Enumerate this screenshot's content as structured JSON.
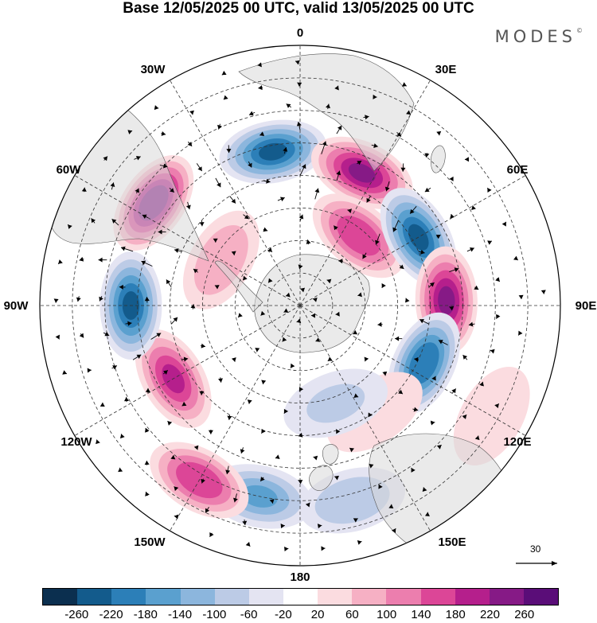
{
  "title": "Base 12/05/2025 00 UTC, valid 13/05/2025 00 UTC",
  "brand": "MODES",
  "brand_mark": "©",
  "lon_labels": [
    "0",
    "30E",
    "60E",
    "90E",
    "120E",
    "150E",
    "180",
    "150W",
    "120W",
    "90W",
    "60W",
    "30W"
  ],
  "colorbar": {
    "ticks": [
      "-260",
      "-220",
      "-180",
      "-140",
      "-100",
      "-60",
      "-20",
      "20",
      "60",
      "100",
      "140",
      "180",
      "220",
      "260"
    ],
    "colors": [
      "#0b2f4f",
      "#135b8c",
      "#2c7fb8",
      "#5aa0cf",
      "#8cb6dd",
      "#bccbe6",
      "#e4e4f2",
      "#ffffff",
      "#fbdce0",
      "#f6b0c4",
      "#ec7eae",
      "#dc4697",
      "#b51f8c",
      "#861a86",
      "#5a0d78"
    ]
  },
  "vector_scale": {
    "value": "30",
    "icon": "arrow-right-icon"
  },
  "land_color": "#e3e3e3",
  "anomaly_centers": [
    {
      "lon": 350,
      "lat": -42,
      "value": -220
    },
    {
      "lon": 25,
      "lat": -45,
      "value": 230
    },
    {
      "lon": 40,
      "lat": -62,
      "value": 160
    },
    {
      "lon": 60,
      "lat": -48,
      "value": -230
    },
    {
      "lon": 88,
      "lat": -45,
      "value": 230
    },
    {
      "lon": 115,
      "lat": -48,
      "value": -210
    },
    {
      "lon": 120,
      "lat": -22,
      "value": 40
    },
    {
      "lon": 145,
      "lat": -50,
      "value": 50
    },
    {
      "lon": 160,
      "lat": -58,
      "value": -60
    },
    {
      "lon": 165,
      "lat": -28,
      "value": -90
    },
    {
      "lon": 192,
      "lat": -30,
      "value": -150
    },
    {
      "lon": 210,
      "lat": -28,
      "value": 170
    },
    {
      "lon": 240,
      "lat": -45,
      "value": 180
    },
    {
      "lon": 270,
      "lat": -38,
      "value": -220
    },
    {
      "lon": 305,
      "lat": -35,
      "value": 250
    },
    {
      "lon": 300,
      "lat": -62,
      "value": 90
    }
  ]
}
